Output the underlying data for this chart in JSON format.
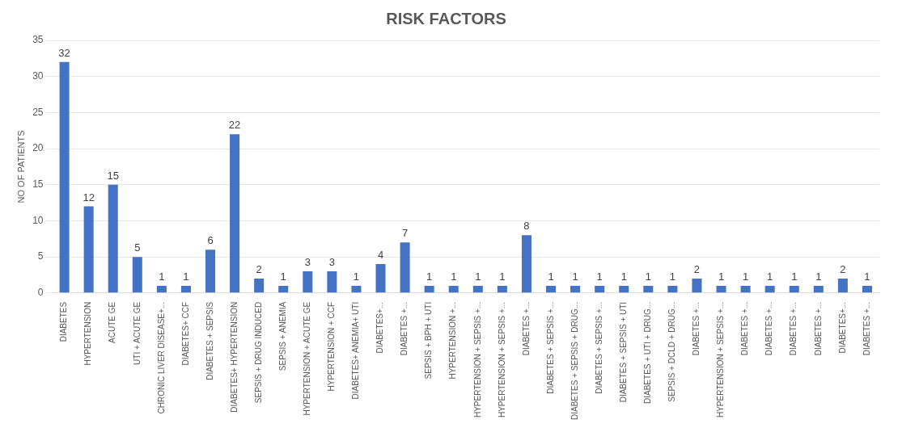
{
  "chart_data": {
    "type": "bar",
    "title": "RISK FACTORS",
    "ylabel": "NO OF PATIENTS",
    "categories": [
      "DIABETES",
      "HYPERTENSION",
      "ACUTE GE",
      "UTI + ACUTE GE",
      "CHRONIC LIVER DISEASE+...",
      "DIABETES+ CCF",
      "DIABETES + SEPSIS",
      "DIABETES+ HYPERTENSION",
      "SEPSIS + DRUG INDUCED",
      "SEPSIS + ANEMIA",
      "HYPERTENSION + ACUTE GE",
      "HYPERTENSION + CCF",
      "DIABETES+ ANEMIA+ UTI",
      "DIABETES+...",
      "DIABETES +...",
      "SEPSIS + BPH + UTI",
      "HYPERTENSION +...",
      "HYPERTENSION + SEPSIS +...",
      "HYPERTENSION + SEPSIS +...",
      "DIABETES +...",
      "DIABETES + SEPSIS +...",
      "DIABETES + SEPSIS + DRUG...",
      "DIABETES + SEPSIS +...",
      "DIABETES + SEPSIS + UTI",
      "DIABETES + UTI + DRUG...",
      "SEPSIS + DCLD + DRUG...",
      "DIABETES +...",
      "HYPERTENSION + SEPSIS +...",
      "DIABETES +...",
      "DIABETES +...",
      "DIABETES +...",
      "DIABETES +...",
      "DIABETES+...",
      "DIABETES +..."
    ],
    "values": [
      32,
      12,
      15,
      5,
      1,
      1,
      6,
      22,
      2,
      1,
      3,
      3,
      1,
      4,
      7,
      1,
      1,
      1,
      1,
      8,
      1,
      1,
      1,
      1,
      1,
      1,
      2,
      1,
      1,
      1,
      1,
      1,
      2,
      1
    ],
    "color": "#4472c4",
    "ylim": [
      0,
      35
    ],
    "yticks": [
      0,
      5,
      10,
      15,
      20,
      25,
      30,
      35
    ],
    "grid": "y",
    "data_labels": true
  }
}
